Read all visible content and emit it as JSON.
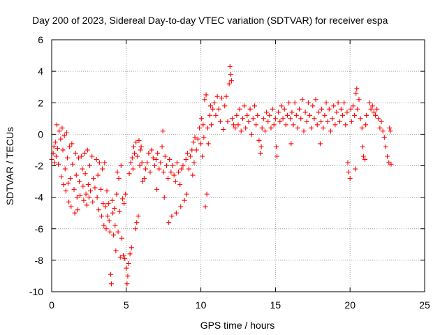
{
  "chart_data": {
    "type": "scatter",
    "title": "Day 200 of 2023, Sidereal Day-to-day VTEC variation (SDTVAR) for receiver espa",
    "xlabel": "GPS time / hours",
    "ylabel": "SDTVAR / TECUs",
    "xlim": [
      0,
      25
    ],
    "ylim": [
      -10,
      6
    ],
    "xticks": [
      0,
      5,
      10,
      15,
      20,
      25
    ],
    "yticks": [
      -10,
      -8,
      -6,
      -4,
      -2,
      0,
      2,
      4,
      6
    ],
    "xtick_labels": [
      "0",
      "5",
      "10",
      "15",
      "20",
      "25"
    ],
    "ytick_labels": [
      "-10",
      "-8",
      "-6",
      "-4",
      "-2",
      "0",
      "2",
      "4",
      "6"
    ],
    "grid": true,
    "marker": "+",
    "color": "#ff0000",
    "series": [
      {
        "name": "SDTVAR",
        "points": [
          [
            0.0,
            -1.6
          ],
          [
            0.1,
            -1.2
          ],
          [
            0.15,
            -0.8
          ],
          [
            0.2,
            -1.8
          ],
          [
            0.25,
            -0.5
          ],
          [
            0.3,
            -1.4
          ],
          [
            0.35,
            0.6
          ],
          [
            0.4,
            -0.9
          ],
          [
            0.45,
            -1.9
          ],
          [
            0.5,
            0.2
          ],
          [
            0.6,
            -0.3
          ],
          [
            0.65,
            -2.7
          ],
          [
            0.7,
            0.4
          ],
          [
            0.75,
            -1.0
          ],
          [
            0.8,
            -3.2
          ],
          [
            0.85,
            -0.1
          ],
          [
            0.9,
            -2.2
          ],
          [
            0.95,
            -3.6
          ],
          [
            1.0,
            0.1
          ],
          [
            1.05,
            -1.5
          ],
          [
            1.1,
            -3.1
          ],
          [
            1.15,
            -4.3
          ],
          [
            1.2,
            -0.8
          ],
          [
            1.25,
            -2.8
          ],
          [
            1.3,
            -4.6
          ],
          [
            1.35,
            -0.6
          ],
          [
            1.4,
            -1.9
          ],
          [
            1.5,
            -3.5
          ],
          [
            1.55,
            -5.0
          ],
          [
            1.6,
            -1.2
          ],
          [
            1.65,
            -2.6
          ],
          [
            1.7,
            -4.0
          ],
          [
            1.75,
            -4.8
          ],
          [
            1.8,
            -1.5
          ],
          [
            1.85,
            -3.0
          ],
          [
            1.9,
            -3.9
          ],
          [
            2.0,
            -1.4
          ],
          [
            2.05,
            -2.2
          ],
          [
            2.1,
            -3.3
          ],
          [
            2.15,
            -4.2
          ],
          [
            2.2,
            -1.2
          ],
          [
            2.25,
            -2.5
          ],
          [
            2.3,
            -3.8
          ],
          [
            2.35,
            -4.5
          ],
          [
            2.4,
            -1.0
          ],
          [
            2.45,
            -3.2
          ],
          [
            2.5,
            -4.0
          ],
          [
            2.55,
            -2.0
          ],
          [
            2.6,
            -3.6
          ],
          [
            2.7,
            -1.4
          ],
          [
            2.75,
            -4.3
          ],
          [
            2.8,
            -2.8
          ],
          [
            2.9,
            -3.4
          ],
          [
            3.0,
            -1.6
          ],
          [
            3.05,
            -4.0
          ],
          [
            3.1,
            -2.6
          ],
          [
            3.15,
            -4.8
          ],
          [
            3.2,
            -1.8
          ],
          [
            3.3,
            -3.5
          ],
          [
            3.35,
            -5.2
          ],
          [
            3.4,
            -2.2
          ],
          [
            3.45,
            -4.4
          ],
          [
            3.5,
            -5.8
          ],
          [
            3.55,
            -1.8
          ],
          [
            3.6,
            -4.6
          ],
          [
            3.65,
            -6.0
          ],
          [
            3.7,
            -3.6
          ],
          [
            3.75,
            -5.2
          ],
          [
            3.8,
            -4.4
          ],
          [
            3.85,
            -5.5
          ],
          [
            3.9,
            -6.2
          ],
          [
            3.95,
            -8.9
          ],
          [
            4.0,
            -9.5
          ],
          [
            4.05,
            -4.2
          ],
          [
            4.1,
            -5.0
          ],
          [
            4.15,
            -6.4
          ],
          [
            4.2,
            -4.7
          ],
          [
            4.25,
            -5.8
          ],
          [
            4.3,
            -7.4
          ],
          [
            4.35,
            -3.8
          ],
          [
            4.4,
            -2.4
          ],
          [
            4.45,
            -6.2
          ],
          [
            4.5,
            -2.8
          ],
          [
            4.55,
            -4.9
          ],
          [
            4.6,
            -7.8
          ],
          [
            4.65,
            -2.0
          ],
          [
            4.7,
            -6.6
          ],
          [
            4.75,
            -4.1
          ],
          [
            4.8,
            -7.7
          ],
          [
            4.85,
            -4.4
          ],
          [
            4.9,
            -7.9
          ],
          [
            4.95,
            -3.8
          ],
          [
            5.0,
            -8.5
          ],
          [
            5.05,
            -9.5
          ],
          [
            5.1,
            -9.0
          ],
          [
            5.15,
            -8.2
          ],
          [
            5.2,
            -2.5
          ],
          [
            5.25,
            -7.6
          ],
          [
            5.3,
            -1.8
          ],
          [
            5.35,
            -7.2
          ],
          [
            5.4,
            -1.5
          ],
          [
            5.45,
            -2.2
          ],
          [
            5.5,
            -0.8
          ],
          [
            5.55,
            -1.2
          ],
          [
            5.6,
            -6.0
          ],
          [
            5.65,
            -0.5
          ],
          [
            5.7,
            -5.6
          ],
          [
            5.75,
            -1.4
          ],
          [
            5.8,
            -5.2
          ],
          [
            5.85,
            -0.4
          ],
          [
            5.9,
            -2.0
          ],
          [
            5.95,
            -1.0
          ],
          [
            6.0,
            -0.8
          ],
          [
            6.05,
            -1.8
          ],
          [
            6.1,
            -3.0
          ],
          [
            6.2,
            -2.8
          ],
          [
            6.3,
            -2.2
          ],
          [
            6.4,
            -1.8
          ],
          [
            6.5,
            -1.2
          ],
          [
            6.6,
            -2.4
          ],
          [
            6.7,
            -1.0
          ],
          [
            6.8,
            -1.5
          ],
          [
            6.9,
            -2.0
          ],
          [
            7.0,
            -1.6
          ],
          [
            7.05,
            -3.5
          ],
          [
            7.1,
            -1.2
          ],
          [
            7.2,
            -2.2
          ],
          [
            7.3,
            -1.8
          ],
          [
            7.4,
            -0.8
          ],
          [
            7.45,
            0.2
          ],
          [
            7.5,
            -2.4
          ],
          [
            7.55,
            -4.0
          ],
          [
            7.6,
            -1.4
          ],
          [
            7.7,
            -2.0
          ],
          [
            7.8,
            -2.8
          ],
          [
            7.85,
            -5.6
          ],
          [
            7.9,
            -1.6
          ],
          [
            8.0,
            -2.4
          ],
          [
            8.05,
            -5.2
          ],
          [
            8.1,
            -2.0
          ],
          [
            8.2,
            -2.6
          ],
          [
            8.3,
            -3.0
          ],
          [
            8.35,
            -5.0
          ],
          [
            8.4,
            -1.8
          ],
          [
            8.5,
            -2.4
          ],
          [
            8.6,
            -3.2
          ],
          [
            8.65,
            -4.6
          ],
          [
            8.7,
            -2.2
          ],
          [
            8.8,
            -2.0
          ],
          [
            8.9,
            -4.2
          ],
          [
            9.0,
            -1.6
          ],
          [
            9.05,
            -3.8
          ],
          [
            9.1,
            -1.2
          ],
          [
            9.2,
            -2.2
          ],
          [
            9.3,
            -1.4
          ],
          [
            9.4,
            -1.0
          ],
          [
            9.45,
            -2.6
          ],
          [
            9.5,
            -0.5
          ],
          [
            9.55,
            -1.8
          ],
          [
            9.6,
            -0.2
          ],
          [
            9.7,
            -1.0
          ],
          [
            9.8,
            -0.3
          ],
          [
            9.9,
            0.4
          ],
          [
            10.0,
            -0.6
          ],
          [
            10.05,
            1.0
          ],
          [
            10.1,
            -1.4
          ],
          [
            10.15,
            0.6
          ],
          [
            10.2,
            -0.2
          ],
          [
            10.25,
            2.2
          ],
          [
            10.3,
            -4.6
          ],
          [
            10.35,
            2.5
          ],
          [
            10.4,
            -3.8
          ],
          [
            10.45,
            0.4
          ],
          [
            10.5,
            -0.6
          ],
          [
            10.6,
            1.2
          ],
          [
            10.65,
            1.8
          ],
          [
            10.7,
            0.6
          ],
          [
            10.8,
            1.6
          ],
          [
            10.9,
            2.0
          ],
          [
            11.0,
            1.2
          ],
          [
            11.1,
            2.4
          ],
          [
            11.2,
            1.6
          ],
          [
            11.3,
            0.8
          ],
          [
            11.4,
            2.3
          ],
          [
            11.5,
            0.3
          ],
          [
            11.6,
            1.8
          ],
          [
            11.7,
            2.4
          ],
          [
            11.8,
            0.8
          ],
          [
            11.9,
            3.2
          ],
          [
            11.95,
            4.3
          ],
          [
            12.0,
            3.8
          ],
          [
            12.05,
            3.4
          ],
          [
            12.1,
            1.0
          ],
          [
            12.2,
            0.6
          ],
          [
            12.3,
            0.4
          ],
          [
            12.4,
            1.2
          ],
          [
            12.5,
            0.6
          ],
          [
            12.6,
            1.6
          ],
          [
            12.7,
            0.2
          ],
          [
            12.8,
            1.0
          ],
          [
            12.9,
            1.8
          ],
          [
            13.0,
            0.4
          ],
          [
            13.1,
            1.2
          ],
          [
            13.2,
            0.8
          ],
          [
            13.3,
            1.6
          ],
          [
            13.4,
            0.0
          ],
          [
            13.5,
            1.0
          ],
          [
            13.6,
            1.8
          ],
          [
            13.7,
            0.6
          ],
          [
            13.8,
            1.2
          ],
          [
            13.9,
            -0.4
          ],
          [
            14.0,
            -1.2
          ],
          [
            14.05,
            -0.8
          ],
          [
            14.1,
            0.4
          ],
          [
            14.2,
            1.0
          ],
          [
            14.3,
            0.2
          ],
          [
            14.4,
            1.4
          ],
          [
            14.5,
            0.8
          ],
          [
            14.6,
            1.2
          ],
          [
            14.7,
            0.4
          ],
          [
            14.8,
            1.6
          ],
          [
            14.9,
            0.6
          ],
          [
            15.0,
            1.0
          ],
          [
            15.05,
            -0.8
          ],
          [
            15.1,
            -1.4
          ],
          [
            15.2,
            1.4
          ],
          [
            15.3,
            0.8
          ],
          [
            15.4,
            1.8
          ],
          [
            15.5,
            1.0
          ],
          [
            15.6,
            1.6
          ],
          [
            15.7,
            0.6
          ],
          [
            15.8,
            1.2
          ],
          [
            15.9,
            2.0
          ],
          [
            16.0,
            1.0
          ],
          [
            16.05,
            -0.6
          ],
          [
            16.1,
            1.4
          ],
          [
            16.2,
            0.6
          ],
          [
            16.3,
            2.0
          ],
          [
            16.4,
            1.2
          ],
          [
            16.5,
            0.4
          ],
          [
            16.6,
            1.6
          ],
          [
            16.7,
            1.0
          ],
          [
            16.8,
            2.2
          ],
          [
            16.9,
            0.2
          ],
          [
            17.0,
            1.4
          ],
          [
            17.1,
            0.8
          ],
          [
            17.2,
            2.0
          ],
          [
            17.3,
            1.2
          ],
          [
            17.4,
            0.4
          ],
          [
            17.5,
            1.8
          ],
          [
            17.6,
            1.0
          ],
          [
            17.7,
            2.2
          ],
          [
            17.8,
            0.6
          ],
          [
            17.9,
            1.4
          ],
          [
            18.0,
            -0.6
          ],
          [
            18.05,
            0.8
          ],
          [
            18.1,
            1.6
          ],
          [
            18.2,
            0.4
          ],
          [
            18.3,
            1.2
          ],
          [
            18.4,
            2.0
          ],
          [
            18.5,
            0.8
          ],
          [
            18.6,
            1.6
          ],
          [
            18.7,
            0.2
          ],
          [
            18.8,
            1.0
          ],
          [
            18.9,
            1.8
          ],
          [
            19.0,
            0.6
          ],
          [
            19.1,
            1.4
          ],
          [
            19.2,
            2.0
          ],
          [
            19.3,
            0.8
          ],
          [
            19.4,
            1.6
          ],
          [
            19.5,
            1.2
          ],
          [
            19.6,
            2.0
          ],
          [
            19.7,
            0.6
          ],
          [
            19.8,
            1.4
          ],
          [
            19.85,
            -1.8
          ],
          [
            19.9,
            -2.4
          ],
          [
            20.0,
            -2.8
          ],
          [
            20.05,
            1.6
          ],
          [
            20.1,
            0.8
          ],
          [
            20.2,
            1.8
          ],
          [
            20.3,
            1.2
          ],
          [
            20.35,
            -2.2
          ],
          [
            20.4,
            2.6
          ],
          [
            20.45,
            2.9
          ],
          [
            20.5,
            1.6
          ],
          [
            20.6,
            2.2
          ],
          [
            20.7,
            1.0
          ],
          [
            20.8,
            0.4
          ],
          [
            20.85,
            -0.8
          ],
          [
            20.9,
            -1.4
          ],
          [
            21.0,
            -1.6
          ],
          [
            21.05,
            0.6
          ],
          [
            21.1,
            1.2
          ],
          [
            21.3,
            2.0
          ],
          [
            21.4,
            1.6
          ],
          [
            21.5,
            1.8
          ],
          [
            21.6,
            1.4
          ],
          [
            21.7,
            1.2
          ],
          [
            21.8,
            1.6
          ],
          [
            21.9,
            1.0
          ],
          [
            22.0,
            0.4
          ],
          [
            22.1,
            0.8
          ],
          [
            22.2,
            0.2
          ],
          [
            22.3,
            -0.2
          ],
          [
            22.4,
            -0.8
          ],
          [
            22.5,
            -1.4
          ],
          [
            22.6,
            -1.8
          ],
          [
            22.65,
            0.4
          ],
          [
            22.7,
            0.2
          ],
          [
            22.75,
            -1.9
          ]
        ]
      }
    ]
  }
}
